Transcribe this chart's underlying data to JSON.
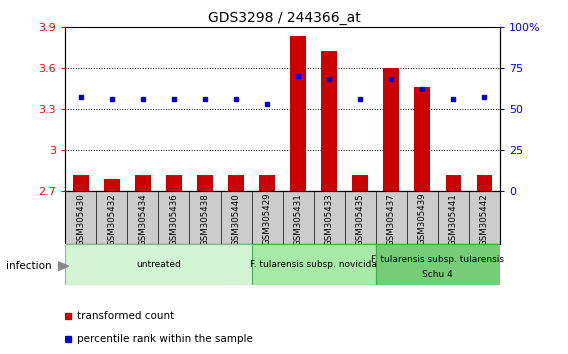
{
  "title": "GDS3298 / 244366_at",
  "samples": [
    "GSM305430",
    "GSM305432",
    "GSM305434",
    "GSM305436",
    "GSM305438",
    "GSM305440",
    "GSM305429",
    "GSM305431",
    "GSM305433",
    "GSM305435",
    "GSM305437",
    "GSM305439",
    "GSM305441",
    "GSM305442"
  ],
  "transformed_count": [
    2.82,
    2.79,
    2.82,
    2.82,
    2.82,
    2.82,
    2.82,
    3.83,
    3.72,
    2.82,
    3.6,
    3.46,
    2.82,
    2.82
  ],
  "percentile_rank": [
    57,
    56,
    56,
    56,
    56,
    56,
    53,
    70,
    68,
    56,
    68,
    62,
    56,
    57
  ],
  "ylim_left": [
    2.7,
    3.9
  ],
  "ylim_right": [
    0,
    100
  ],
  "yticks_left": [
    2.7,
    3.0,
    3.3,
    3.6,
    3.9
  ],
  "ytick_labels_left": [
    "2.7",
    "3",
    "3.3",
    "3.6",
    "3.9"
  ],
  "yticks_right": [
    0,
    25,
    50,
    75,
    100
  ],
  "ytick_labels_right": [
    "0",
    "25",
    "50",
    "75",
    "100%"
  ],
  "bar_color": "#cc0000",
  "dot_color": "#0000cc",
  "bar_width": 0.5,
  "groups": [
    {
      "label": "untreated",
      "start": 0,
      "end": 6,
      "color": "#d4f5d4",
      "border": "#88bb88"
    },
    {
      "label": "F. tularensis subsp. novicida",
      "start": 6,
      "end": 10,
      "color": "#a8e8a8",
      "border": "#55aa55"
    },
    {
      "label": "F. tularensis subsp. tularensis\nSchu 4",
      "start": 10,
      "end": 14,
      "color": "#77cc77",
      "border": "#44aa44"
    }
  ],
  "infection_label": "infection",
  "legend_items": [
    {
      "color": "#cc0000",
      "label": "transformed count"
    },
    {
      "color": "#0000cc",
      "label": "percentile rank within the sample"
    }
  ],
  "bg_color": "#ffffff",
  "sample_box_color": "#cccccc",
  "sample_box_border": "#888888"
}
